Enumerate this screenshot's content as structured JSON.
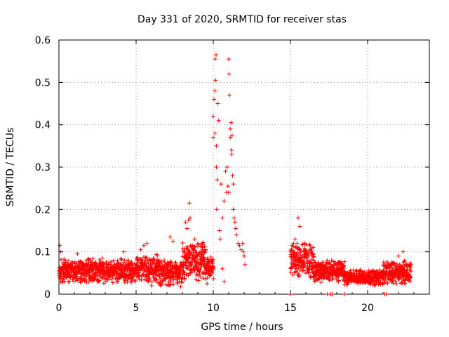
{
  "chart_data": {
    "type": "scatter",
    "title": "Day 331 of 2020, SRMTID for receiver stas",
    "xlabel": "GPS time / hours",
    "ylabel": "SRMTID / TECUs",
    "xlim": [
      0,
      24
    ],
    "ylim": [
      0,
      0.6
    ],
    "xticks": [
      0,
      5,
      10,
      15,
      20
    ],
    "yticks": [
      0,
      0.1,
      0.2,
      0.3,
      0.4,
      0.5,
      0.6
    ],
    "xtick_labels": [
      "0",
      "5",
      "10",
      "15",
      "20"
    ],
    "ytick_labels": [
      "0",
      "0.1",
      "0.2",
      "0.3",
      "0.4",
      "0.5",
      "0.6"
    ],
    "grid": true,
    "marker": "+",
    "color": "#ff0000",
    "series": [
      {
        "name": "SRMTID",
        "segments": [
          {
            "x_start": 0.0,
            "x_end": 5.0,
            "base": 0.055,
            "spread": 0.03,
            "step": 0.02
          },
          {
            "x_start": 5.0,
            "x_end": 6.5,
            "base": 0.06,
            "spread": 0.035,
            "step": 0.02
          },
          {
            "x_start": 6.5,
            "x_end": 8.0,
            "base": 0.05,
            "spread": 0.035,
            "step": 0.02
          },
          {
            "x_start": 8.0,
            "x_end": 9.5,
            "base": 0.08,
            "spread": 0.05,
            "step": 0.02
          },
          {
            "x_start": 9.5,
            "x_end": 10.0,
            "base": 0.06,
            "spread": 0.03,
            "step": 0.02
          },
          {
            "x_start": 15.0,
            "x_end": 16.5,
            "base": 0.08,
            "spread": 0.045,
            "step": 0.02
          },
          {
            "x_start": 16.5,
            "x_end": 18.5,
            "base": 0.055,
            "spread": 0.03,
            "step": 0.02
          },
          {
            "x_start": 18.5,
            "x_end": 21.0,
            "base": 0.04,
            "spread": 0.02,
            "step": 0.02
          },
          {
            "x_start": 21.0,
            "x_end": 22.8,
            "base": 0.05,
            "spread": 0.03,
            "step": 0.02
          }
        ],
        "points": [
          [
            0.05,
            0.115
          ],
          [
            0.1,
            0.1
          ],
          [
            0.5,
            0.04
          ],
          [
            1.2,
            0.095
          ],
          [
            2.8,
            0.085
          ],
          [
            4.2,
            0.1
          ],
          [
            5.3,
            0.105
          ],
          [
            5.5,
            0.115
          ],
          [
            5.7,
            0.12
          ],
          [
            6.0,
            0.02
          ],
          [
            7.2,
            0.135
          ],
          [
            7.4,
            0.125
          ],
          [
            7.8,
            0.03
          ],
          [
            8.2,
            0.17
          ],
          [
            8.3,
            0.155
          ],
          [
            8.4,
            0.175
          ],
          [
            8.45,
            0.215
          ],
          [
            8.5,
            0.18
          ],
          [
            8.8,
            0.13
          ],
          [
            9.0,
            0.12
          ],
          [
            9.3,
            0.11
          ],
          [
            9.6,
            0.025
          ],
          [
            10.0,
            0.42
          ],
          [
            10.0,
            0.37
          ],
          [
            10.05,
            0.46
          ],
          [
            10.1,
            0.48
          ],
          [
            10.1,
            0.38
          ],
          [
            10.12,
            0.555
          ],
          [
            10.15,
            0.505
          ],
          [
            10.18,
            0.565
          ],
          [
            10.2,
            0.35
          ],
          [
            10.2,
            0.3
          ],
          [
            10.22,
            0.2
          ],
          [
            10.25,
            0.27
          ],
          [
            10.3,
            0.45
          ],
          [
            10.35,
            0.41
          ],
          [
            10.4,
            0.15
          ],
          [
            10.45,
            0.13
          ],
          [
            10.5,
            0.26
          ],
          [
            10.6,
            0.06
          ],
          [
            10.7,
            0.03
          ],
          [
            10.8,
            0.29
          ],
          [
            10.85,
            0.24
          ],
          [
            10.9,
            0.3
          ],
          [
            10.95,
            0.255
          ],
          [
            11.0,
            0.555
          ],
          [
            11.02,
            0.52
          ],
          [
            11.05,
            0.47
          ],
          [
            11.1,
            0.39
          ],
          [
            11.1,
            0.37
          ],
          [
            11.15,
            0.405
          ],
          [
            11.18,
            0.34
          ],
          [
            11.2,
            0.33
          ],
          [
            11.22,
            0.375
          ],
          [
            11.25,
            0.28
          ],
          [
            11.3,
            0.2
          ],
          [
            11.35,
            0.18
          ],
          [
            11.4,
            0.17
          ],
          [
            11.45,
            0.155
          ],
          [
            11.5,
            0.14
          ],
          [
            11.6,
            0.12
          ],
          [
            11.7,
            0.115
          ],
          [
            11.8,
            0.105
          ],
          [
            11.9,
            0.12
          ],
          [
            11.95,
            0.1
          ],
          [
            12.0,
            0.09
          ],
          [
            12.05,
            0.07
          ],
          [
            10.6,
            0.18
          ],
          [
            10.7,
            0.22
          ],
          [
            11.0,
            0.24
          ],
          [
            11.3,
            0.26
          ],
          [
            15.0,
            0.0
          ],
          [
            15.2,
            0.12
          ],
          [
            15.3,
            0.13
          ],
          [
            15.5,
            0.18
          ],
          [
            15.6,
            0.16
          ],
          [
            16.2,
            0.06
          ],
          [
            16.4,
            0.09
          ],
          [
            17.4,
            0.0
          ],
          [
            17.6,
            0.0
          ],
          [
            17.7,
            0.0
          ],
          [
            18.5,
            0.0
          ],
          [
            21.1,
            0.0
          ],
          [
            21.2,
            0.0
          ],
          [
            22.3,
            0.1
          ],
          [
            22.0,
            0.09
          ]
        ]
      }
    ]
  }
}
